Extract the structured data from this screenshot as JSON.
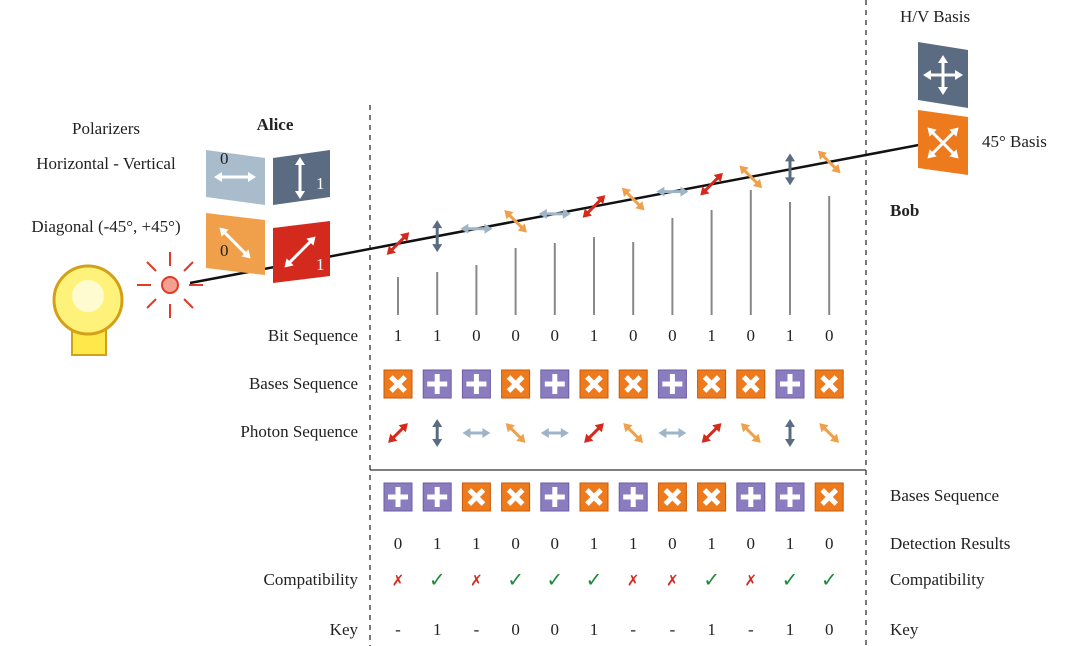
{
  "labels": {
    "polarizers": "Polarizers",
    "horizontal_vertical": "Horizontal - Vertical",
    "diagonal": "Diagonal (-45°, +45°)",
    "alice": "Alice",
    "bob": "Bob",
    "hv_basis": "H/V Basis",
    "diag_basis": "45° Basis"
  },
  "polarizer_digits": [
    "0",
    "1",
    "0",
    "1"
  ],
  "alice": {
    "bit_label": "Bit Sequence",
    "bits": [
      "1",
      "1",
      "0",
      "0",
      "0",
      "1",
      "0",
      "0",
      "1",
      "0",
      "1",
      "0"
    ],
    "bases_label": "Bases Sequence",
    "bases": [
      "x",
      "+",
      "+",
      "x",
      "+",
      "x",
      "x",
      "+",
      "x",
      "x",
      "+",
      "x"
    ],
    "photon_label": "Photon Sequence"
  },
  "bob": {
    "bases_label": "Bases Sequence",
    "bases": [
      "+",
      "+",
      "x",
      "x",
      "+",
      "x",
      "+",
      "x",
      "x",
      "+",
      "+",
      "x"
    ],
    "detection_label": "Detection Results",
    "detection": [
      "0",
      "1",
      "1",
      "0",
      "0",
      "1",
      "1",
      "0",
      "1",
      "0",
      "1",
      "0"
    ]
  },
  "compatibility_label": "Compatibility",
  "compatibility": [
    "✗",
    "✓",
    "✗",
    "✓",
    "✓",
    "✓",
    "✗",
    "✗",
    "✓",
    "✗",
    "✓",
    "✓"
  ],
  "key_label": "Key",
  "key": [
    "-",
    "1",
    "-",
    "0",
    "0",
    "1",
    "-",
    "-",
    "1",
    "-",
    "1",
    "0"
  ]
}
